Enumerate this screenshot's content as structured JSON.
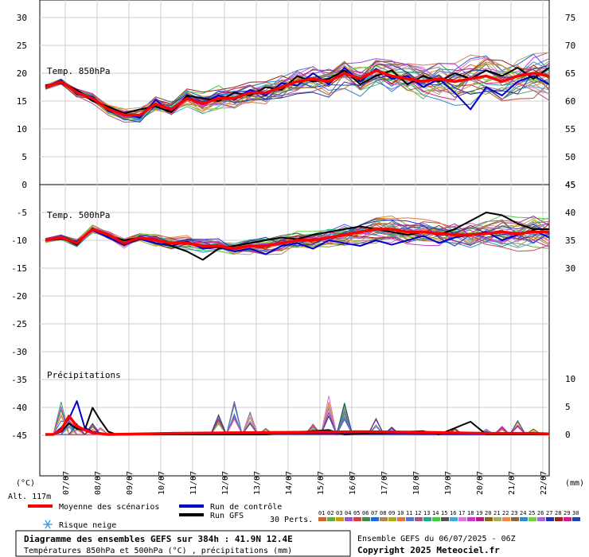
{
  "chart_data": [
    {
      "type": "line",
      "title": "Temp. 850hPa",
      "ylim": [
        0,
        30
      ],
      "left_ticks": [
        0,
        5,
        10,
        15,
        20,
        25,
        30
      ],
      "right_ticks": [
        45,
        50,
        55,
        60,
        65,
        70,
        75
      ],
      "x_dates": [
        "07/07",
        "08/07",
        "09/07",
        "10/07",
        "11/07",
        "12/07",
        "13/07",
        "14/07",
        "15/07",
        "16/07",
        "17/07",
        "18/07",
        "19/07",
        "20/07",
        "21/07",
        "22/07"
      ],
      "series": [
        {
          "name": "Moyenne des scénarios",
          "color": "#ff0000",
          "points": [
            [
              0,
              17.5
            ],
            [
              1,
              18.5
            ],
            [
              2,
              16.5
            ],
            [
              3,
              15.5
            ],
            [
              4,
              13.5
            ],
            [
              5,
              12.5
            ],
            [
              6,
              12.5
            ],
            [
              7,
              14.5
            ],
            [
              8,
              13.5
            ],
            [
              9,
              15.5
            ],
            [
              10,
              14.5
            ],
            [
              11,
              15.5
            ],
            [
              12,
              15.5
            ],
            [
              13,
              16.5
            ],
            [
              14,
              16.5
            ],
            [
              15,
              17.5
            ],
            [
              16,
              18.5
            ],
            [
              17,
              19
            ],
            [
              18,
              18.5
            ],
            [
              19,
              20
            ],
            [
              20,
              19
            ],
            [
              21,
              20.5
            ],
            [
              22,
              19.5
            ],
            [
              23,
              19
            ],
            [
              24,
              18.5
            ],
            [
              25,
              19
            ],
            [
              26,
              18.5
            ],
            [
              27,
              19
            ],
            [
              28,
              19.5
            ],
            [
              29,
              18.5
            ],
            [
              30,
              19.5
            ],
            [
              31,
              20
            ],
            [
              32,
              19.5
            ]
          ]
        },
        {
          "name": "Run de contrôle",
          "color": "#0000cc",
          "points": [
            [
              0,
              17.5
            ],
            [
              1,
              18.8
            ],
            [
              2,
              16.2
            ],
            [
              3,
              15.8
            ],
            [
              4,
              13.2
            ],
            [
              5,
              12.8
            ],
            [
              6,
              12.0
            ],
            [
              7,
              15.2
            ],
            [
              8,
              13.0
            ],
            [
              9,
              15.8
            ],
            [
              10,
              14.5
            ],
            [
              11,
              16.0
            ],
            [
              12,
              15.2
            ],
            [
              13,
              17.0
            ],
            [
              14,
              16.0
            ],
            [
              15,
              18.2
            ],
            [
              16,
              17.8
            ],
            [
              17,
              20.0
            ],
            [
              18,
              18.0
            ],
            [
              19,
              21.0
            ],
            [
              20,
              18.5
            ],
            [
              21,
              20.8
            ],
            [
              22,
              19.0
            ],
            [
              23,
              19.5
            ],
            [
              24,
              17.5
            ],
            [
              25,
              19.0
            ],
            [
              26,
              16.5
            ],
            [
              27,
              13.5
            ],
            [
              28,
              17.5
            ],
            [
              29,
              16.0
            ],
            [
              30,
              18.5
            ],
            [
              31,
              19.5
            ],
            [
              32,
              18.0
            ]
          ]
        },
        {
          "name": "Run GFS",
          "color": "#000000",
          "points": [
            [
              0,
              17.8
            ],
            [
              1,
              18.2
            ],
            [
              2,
              17.0
            ],
            [
              3,
              15.0
            ],
            [
              4,
              14.0
            ],
            [
              5,
              12.8
            ],
            [
              6,
              13.5
            ],
            [
              7,
              14.0
            ],
            [
              8,
              13.0
            ],
            [
              9,
              16.0
            ],
            [
              10,
              15.5
            ],
            [
              11,
              15.0
            ],
            [
              12,
              16.5
            ],
            [
              13,
              16.0
            ],
            [
              14,
              17.5
            ],
            [
              15,
              17.0
            ],
            [
              16,
              19.5
            ],
            [
              17,
              18.5
            ],
            [
              18,
              19.0
            ],
            [
              19,
              20.5
            ],
            [
              20,
              18.0
            ],
            [
              21,
              19.5
            ],
            [
              22,
              20.5
            ],
            [
              23,
              18.0
            ],
            [
              24,
              19.5
            ],
            [
              25,
              18.5
            ],
            [
              26,
              20.0
            ],
            [
              27,
              19.0
            ],
            [
              28,
              20.5
            ],
            [
              29,
              19.5
            ],
            [
              30,
              21.0
            ],
            [
              31,
              19.0
            ],
            [
              32,
              21.0
            ]
          ]
        }
      ]
    },
    {
      "type": "line",
      "title": "Temp. 500hPa",
      "ylim": [
        -20,
        0
      ],
      "left_ticks": [
        -5,
        -10,
        -15,
        -20
      ],
      "right_ticks": [
        45,
        40,
        35,
        30
      ],
      "series": [
        {
          "name": "Moyenne des scénarios",
          "color": "#ff0000",
          "points": [
            [
              0,
              -10
            ],
            [
              1,
              -9.5
            ],
            [
              2,
              -10.5
            ],
            [
              3,
              -8
            ],
            [
              4,
              -9
            ],
            [
              5,
              -10.5
            ],
            [
              6,
              -9.5
            ],
            [
              7,
              -10
            ],
            [
              8,
              -10.5
            ],
            [
              9,
              -10.5
            ],
            [
              10,
              -11
            ],
            [
              11,
              -11
            ],
            [
              12,
              -11.5
            ],
            [
              13,
              -11
            ],
            [
              14,
              -11
            ],
            [
              15,
              -10.5
            ],
            [
              16,
              -10
            ],
            [
              17,
              -10
            ],
            [
              18,
              -9.5
            ],
            [
              19,
              -9
            ],
            [
              20,
              -8.5
            ],
            [
              21,
              -8
            ],
            [
              22,
              -8
            ],
            [
              23,
              -8.5
            ],
            [
              24,
              -8.5
            ],
            [
              25,
              -8.8
            ],
            [
              26,
              -9
            ],
            [
              27,
              -9
            ],
            [
              28,
              -8.8
            ],
            [
              29,
              -8.5
            ],
            [
              30,
              -8.8
            ],
            [
              31,
              -8.5
            ],
            [
              32,
              -8.5
            ]
          ]
        },
        {
          "name": "Run de contrôle",
          "color": "#0000cc",
          "points": [
            [
              0,
              -10
            ],
            [
              1,
              -9.8
            ],
            [
              2,
              -10.2
            ],
            [
              3,
              -8.2
            ],
            [
              4,
              -9.5
            ],
            [
              5,
              -10.8
            ],
            [
              6,
              -9.8
            ],
            [
              7,
              -10.5
            ],
            [
              8,
              -11
            ],
            [
              9,
              -10.2
            ],
            [
              10,
              -11.5
            ],
            [
              11,
              -11.2
            ],
            [
              12,
              -12
            ],
            [
              13,
              -11.5
            ],
            [
              14,
              -12.5
            ],
            [
              15,
              -11
            ],
            [
              16,
              -10.5
            ],
            [
              17,
              -11.5
            ],
            [
              18,
              -10
            ],
            [
              19,
              -10.5
            ],
            [
              20,
              -11
            ],
            [
              21,
              -10
            ],
            [
              22,
              -10.8
            ],
            [
              23,
              -10
            ],
            [
              24,
              -9.2
            ],
            [
              25,
              -10.5
            ],
            [
              26,
              -9.5
            ],
            [
              27,
              -9
            ],
            [
              28,
              -8.5
            ],
            [
              29,
              -10
            ],
            [
              30,
              -9
            ],
            [
              31,
              -8.2
            ],
            [
              32,
              -9.5
            ]
          ]
        },
        {
          "name": "Run GFS",
          "color": "#000000",
          "points": [
            [
              0,
              -10
            ],
            [
              1,
              -9.5
            ],
            [
              2,
              -10.8
            ],
            [
              3,
              -7.8
            ],
            [
              4,
              -9.2
            ],
            [
              5,
              -10
            ],
            [
              6,
              -9.5
            ],
            [
              7,
              -9.8
            ],
            [
              8,
              -11
            ],
            [
              9,
              -12
            ],
            [
              10,
              -13.5
            ],
            [
              11,
              -11.5
            ],
            [
              12,
              -11
            ],
            [
              13,
              -10.5
            ],
            [
              14,
              -10
            ],
            [
              15,
              -9.5
            ],
            [
              16,
              -9.8
            ],
            [
              17,
              -9
            ],
            [
              18,
              -8.5
            ],
            [
              19,
              -8
            ],
            [
              20,
              -7.5
            ],
            [
              21,
              -8
            ],
            [
              22,
              -8.5
            ],
            [
              23,
              -9
            ],
            [
              24,
              -8.5
            ],
            [
              25,
              -9
            ],
            [
              26,
              -8
            ],
            [
              27,
              -6.5
            ],
            [
              28,
              -5
            ],
            [
              29,
              -5.5
            ],
            [
              30,
              -7
            ],
            [
              31,
              -8
            ],
            [
              32,
              -8
            ]
          ]
        }
      ]
    },
    {
      "type": "line",
      "title": "Précipitations",
      "ylim": [
        0,
        10
      ],
      "left_ticks": [
        -35,
        -40,
        -45
      ],
      "right_ticks": [
        10,
        5,
        0
      ],
      "series": [
        {
          "name": "Moyenne des scénarios",
          "color": "#ff0000",
          "points": [
            [
              0,
              0
            ],
            [
              1,
              0
            ],
            [
              2,
              0.8
            ],
            [
              3,
              3.3
            ],
            [
              4,
              1.5
            ],
            [
              5,
              0.8
            ],
            [
              6,
              0.3
            ],
            [
              8,
              0
            ],
            [
              16,
              0.2
            ],
            [
              24,
              0.3
            ],
            [
              32,
              0.4
            ],
            [
              40,
              0.5
            ],
            [
              48,
              0.4
            ],
            [
              56,
              0.2
            ],
            [
              62,
              0.2
            ],
            [
              64,
              0.1
            ]
          ]
        },
        {
          "name": "Run de contrôle",
          "color": "#0000cc",
          "points": [
            [
              0,
              0
            ],
            [
              1,
              0
            ],
            [
              2,
              1.2
            ],
            [
              3,
              2.8
            ],
            [
              4,
              6
            ],
            [
              5,
              1.2
            ],
            [
              6,
              0.5
            ],
            [
              8,
              0
            ],
            [
              16,
              0.2
            ],
            [
              64,
              0
            ]
          ]
        },
        {
          "name": "Run GFS",
          "color": "#000000",
          "points": [
            [
              0,
              0
            ],
            [
              1,
              0
            ],
            [
              2,
              0.5
            ],
            [
              3,
              2.0
            ],
            [
              4,
              1.0
            ],
            [
              5,
              0.8
            ],
            [
              6,
              4.8
            ],
            [
              7,
              2.5
            ],
            [
              8,
              0.5
            ],
            [
              9,
              0
            ],
            [
              16,
              0
            ],
            [
              22,
              0
            ],
            [
              28,
              0
            ],
            [
              36,
              0.8
            ],
            [
              38,
              0
            ],
            [
              48,
              0.6
            ],
            [
              50,
              0
            ],
            [
              54,
              2.3
            ],
            [
              56,
              0
            ],
            [
              64,
              0
            ]
          ]
        }
      ]
    }
  ],
  "axes": {
    "left_unit": "(°C)",
    "right_unit": "(mm)",
    "altitude": "Alt. 117m"
  },
  "legend": {
    "mean_label": "Moyenne des scénarios",
    "control_label": "Run de contrôle",
    "gfs_label": "Run GFS",
    "snow_label": "Risque neige",
    "perts_label": "30 Perts.",
    "member_numbers": [
      "01",
      "02",
      "03",
      "04",
      "05",
      "06",
      "07",
      "08",
      "09",
      "10",
      "11",
      "12",
      "13",
      "14",
      "15",
      "16",
      "17",
      "18",
      "19",
      "20",
      "21",
      "22",
      "23",
      "24",
      "25",
      "26",
      "27",
      "28",
      "29",
      "30"
    ],
    "member_colors": [
      "#cc6633",
      "#66aa44",
      "#cc9922",
      "#9955cc",
      "#cc4444",
      "#448844",
      "#2266dd",
      "#aa8855",
      "#aaaa22",
      "#dd7744",
      "#5577cc",
      "#aa5588",
      "#22aa88",
      "#44cc44",
      "#555555",
      "#44aacc",
      "#dd77dd",
      "#cc33cc",
      "#aa2288",
      "#886622",
      "#aaaa66",
      "#ee8844",
      "#886644",
      "#3388cc",
      "#77cc44",
      "#aa66dd",
      "#2233aa",
      "#992222",
      "#cc2288",
      "#2244aa"
    ]
  },
  "footer": {
    "title": "Diagramme des ensembles GEFS sur 384h : 41.9N 12.4E",
    "subtitle": "Températures 850hPa et 500hPa (°C) , précipitations (mm)",
    "run_info": "Ensemble GEFS du 06/07/2025 - 06Z",
    "copyright": "Copyright 2025 Meteociel.fr"
  }
}
